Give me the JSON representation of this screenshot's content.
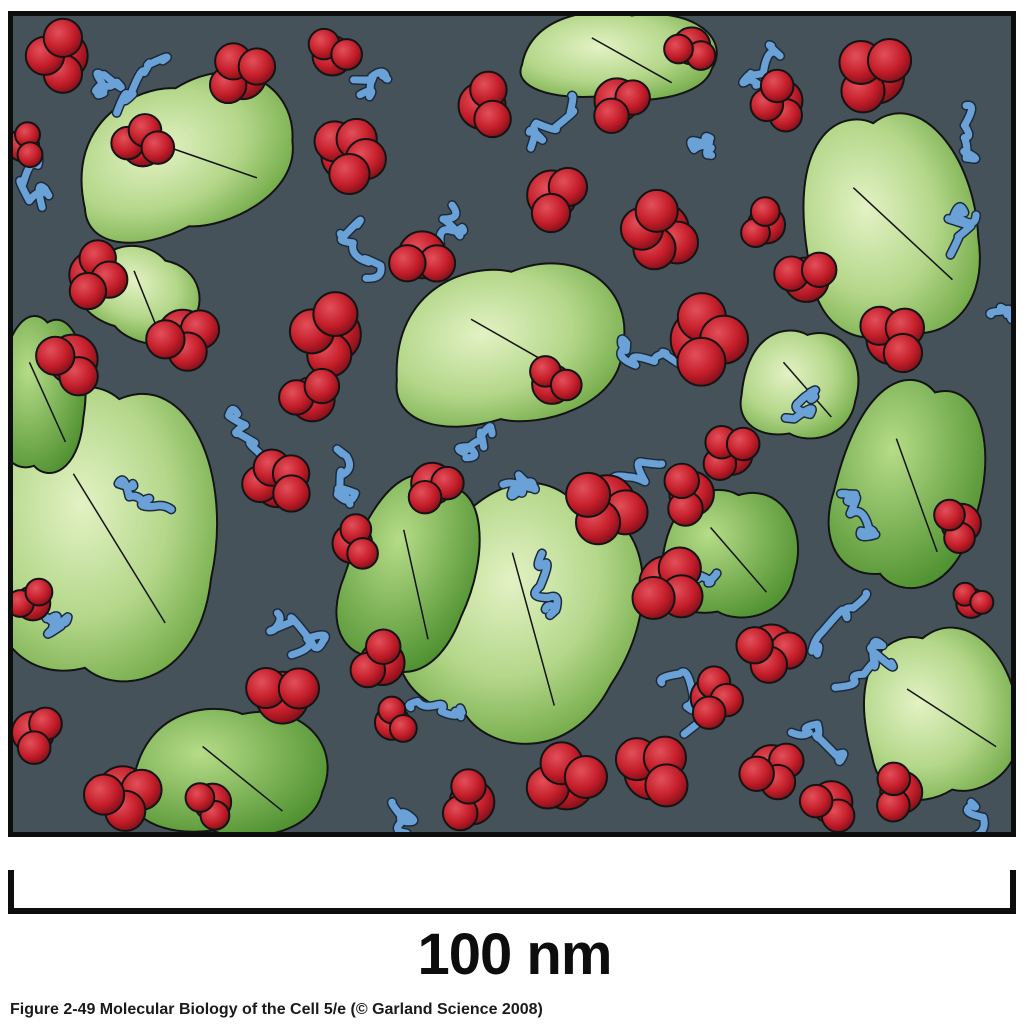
{
  "figure": {
    "scale_label": "100 nm",
    "caption": "Figure 2-49  Molecular Biology of the Cell 5/e (© Garland Science 2008)"
  },
  "colors": {
    "background": "#46525a",
    "green_molecule": "#a9cf7a",
    "green_dark": "#6faa45",
    "red_protein": "#c41e2a",
    "blue_rna": "#6aa2d8",
    "outline": "#141414"
  },
  "illustration": {
    "subject": "crowded cytoplasm: proteins (red), ribosomes (green), RNA (blue)"
  }
}
